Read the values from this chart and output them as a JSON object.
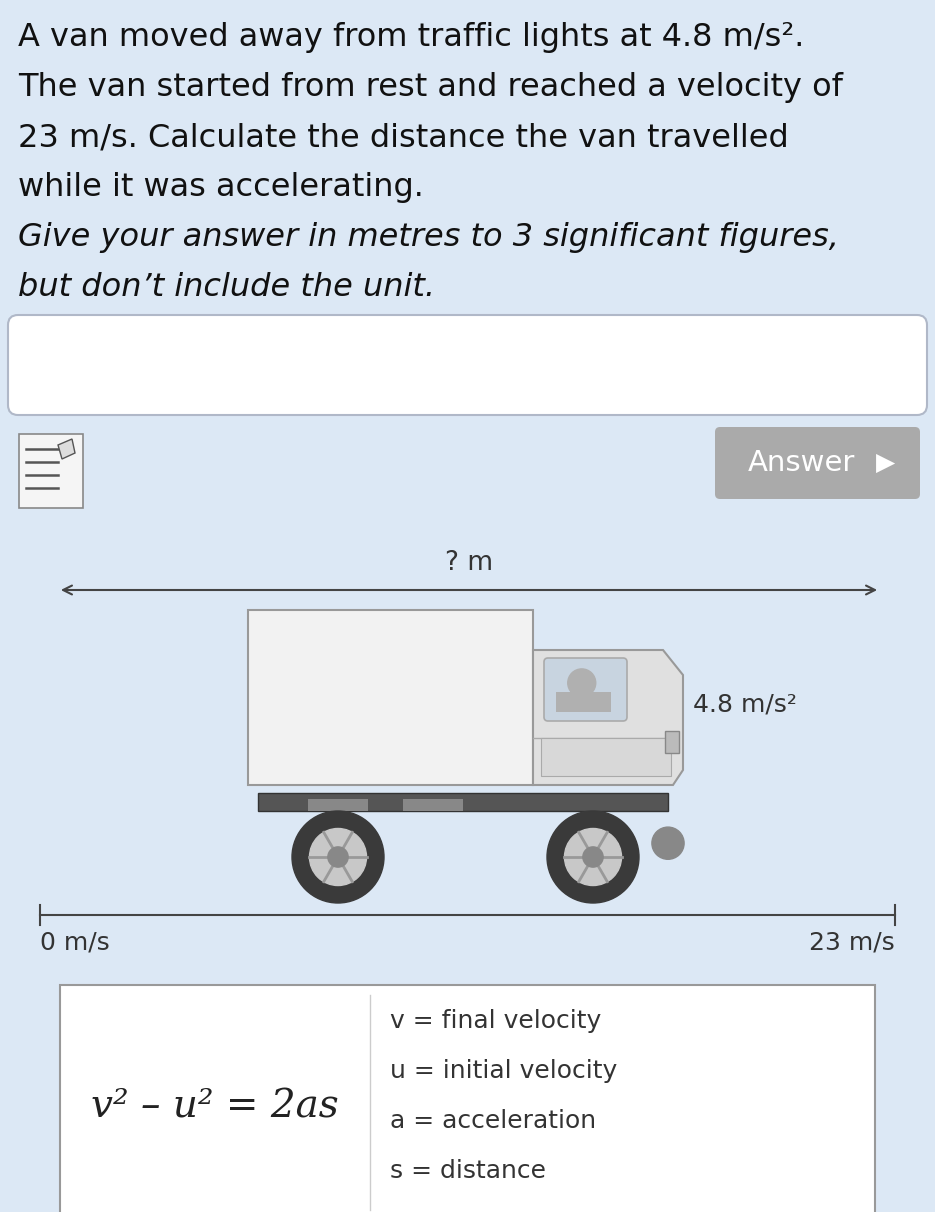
{
  "bg_color": "#dce8f5",
  "title_lines_normal": [
    "A van moved away from traffic lights at 4.8 m/s².",
    "The van started from rest and reached a velocity of",
    "23 m/s. Calculate the distance the van travelled",
    "while it was accelerating."
  ],
  "italic_lines": [
    "Give your answer in metres to 3 significant figures,",
    "but don’t include the unit."
  ],
  "answer_label": "Answer",
  "dist_label": "? m",
  "accel_label": "4.8 m/s²",
  "v_start_label": "0 m/s",
  "v_end_label": "23 m/s",
  "formula": "v² – u² = 2as",
  "legend_items": [
    "v = final velocity",
    "u = initial velocity",
    "a = acceleration",
    "s = distance"
  ],
  "title_fontsize": 23,
  "italic_fontsize": 23,
  "fig_w": 9.35,
  "fig_h": 12.12,
  "dpi": 100
}
